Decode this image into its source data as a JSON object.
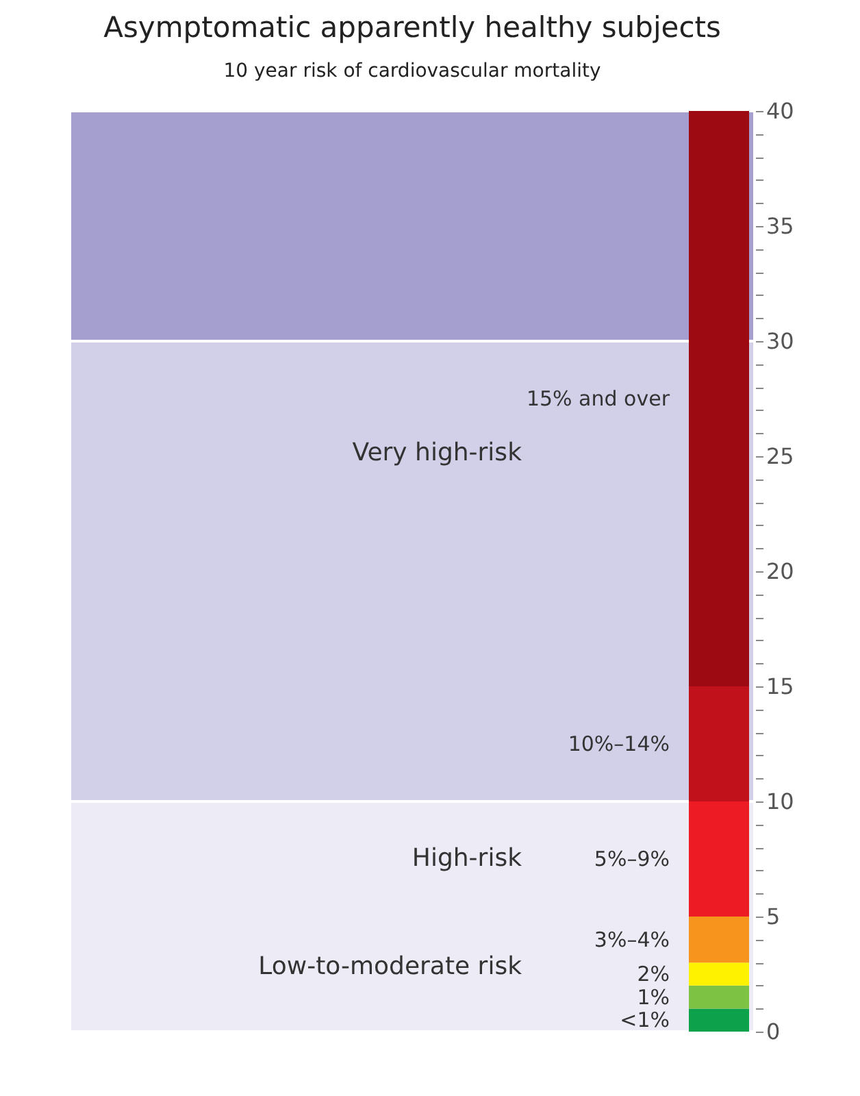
{
  "chart_data": {
    "type": "bar",
    "title": "Asymptomatic apparently healthy subjects",
    "subtitle": "10 year risk of cardiovascular mortality",
    "categories": [
      null
    ],
    "stacked": true,
    "data_labels": false,
    "series": [
      {
        "name": "<1%",
        "color": "#0ca14b",
        "values": [
          1
        ]
      },
      {
        "name": "1%",
        "color": "#7dc242",
        "values": [
          1
        ]
      },
      {
        "name": "2%",
        "color": "#fff200",
        "values": [
          1
        ]
      },
      {
        "name": "3%–4%",
        "color": "#f7941d",
        "values": [
          2
        ]
      },
      {
        "name": "5%–9%",
        "color": "#ed1c24",
        "values": [
          5
        ]
      },
      {
        "name": "10%–14%",
        "color": "#c1121c",
        "values": [
          5
        ]
      },
      {
        "name": "15% and over",
        "color": "#9d0a12",
        "values": [
          25
        ]
      }
    ],
    "ylim": [
      0,
      40
    ],
    "yticks": [
      0,
      {
        "value": 1,
        "label": null
      },
      {
        "value": 2,
        "label": null
      },
      {
        "value": 3,
        "label": null
      },
      {
        "value": 4,
        "label": null
      },
      5,
      {
        "value": 6,
        "label": null
      },
      {
        "value": 7,
        "label": null
      },
      {
        "value": 8,
        "label": null
      },
      {
        "value": 9,
        "label": null
      },
      10,
      {
        "value": 11,
        "label": null
      },
      {
        "value": 12,
        "label": null
      },
      {
        "value": 13,
        "label": null
      },
      {
        "value": 14,
        "label": null
      },
      15,
      {
        "value": 16,
        "label": null
      },
      {
        "value": 17,
        "label": null
      },
      {
        "value": 18,
        "label": null
      },
      {
        "value": 19,
        "label": null
      },
      20,
      {
        "value": 21,
        "label": null
      },
      {
        "value": 22,
        "label": null
      },
      {
        "value": 23,
        "label": null
      },
      {
        "value": 24,
        "label": null
      },
      25,
      {
        "value": 26,
        "label": null
      },
      {
        "value": 27,
        "label": null
      },
      {
        "value": 28,
        "label": null
      },
      {
        "value": 29,
        "label": null
      },
      30,
      {
        "value": 31,
        "label": null
      },
      {
        "value": 32,
        "label": null
      },
      {
        "value": 33,
        "label": null
      },
      {
        "value": 34,
        "label": null
      },
      35,
      {
        "value": 36,
        "label": null
      },
      {
        "value": 37,
        "label": null
      },
      {
        "value": 38,
        "label": null
      },
      {
        "value": 39,
        "label": null
      },
      40
    ],
    "bands": [
      {
        "axis": "y",
        "from": 0,
        "to": 10,
        "color": "#ecebf6"
      },
      {
        "axis": "y",
        "from": 10,
        "to": 30,
        "color": "#d2d0e8"
      },
      {
        "axis": "y",
        "from": 30,
        "to": 40,
        "color": "#a59fd0"
      }
    ],
    "annotations": [
      "Very high-risk",
      "High-risk",
      "Low-to-moderate risk"
    ]
  }
}
